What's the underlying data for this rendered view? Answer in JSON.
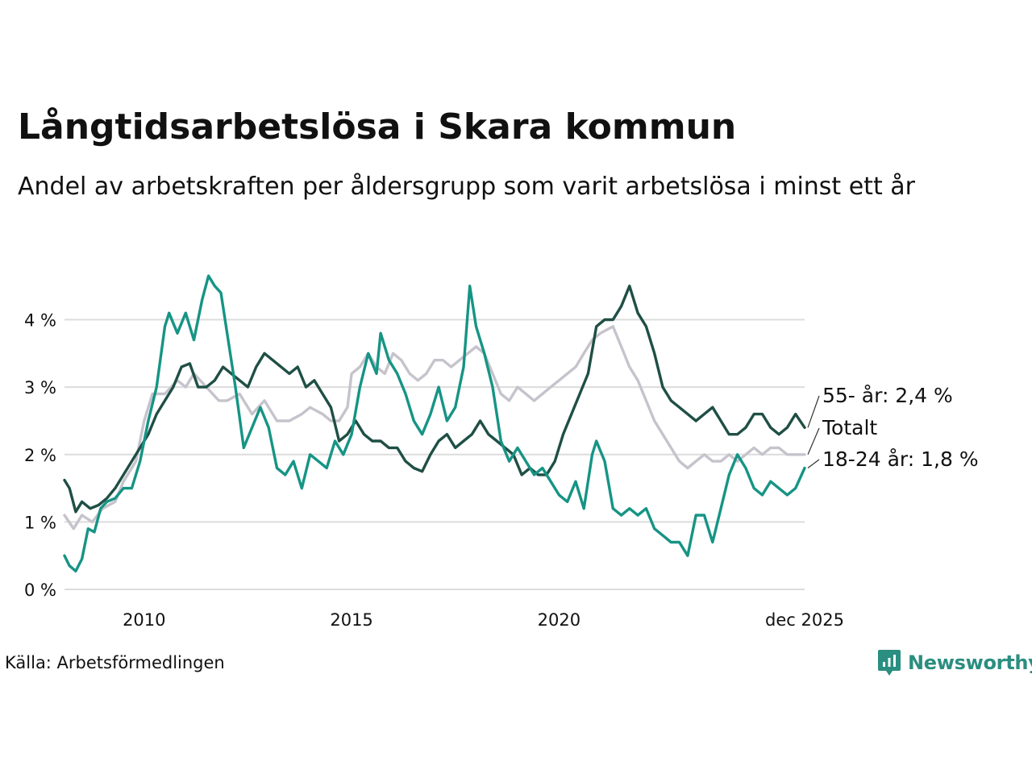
{
  "header": {
    "title": "Långtidsarbetslösa i Skara kommun",
    "subtitle": "Andel av arbetskraften per åldersgrupp som varit arbetslösa i minst ett år"
  },
  "footer": {
    "source": "Källa: Arbetsförmedlingen",
    "brand": "Newsworthy",
    "brand_icon": "newsworthy-logo-icon"
  },
  "colors": {
    "total": "#c6c3cc",
    "age_55": "#1f4f45",
    "age_18_24": "#169485",
    "grid": "#dcdcdc",
    "brand": "#2a8e80"
  },
  "chart_data": {
    "type": "line",
    "title": "Långtidsarbetslösa i Skara kommun",
    "subtitle": "Andel av arbetskraften per åldersgrupp som varit arbetslösa i minst ett år",
    "xlabel": "",
    "ylabel": "",
    "x_range": [
      2008.08,
      2025.92
    ],
    "ylim": [
      0,
      4.7
    ],
    "y_ticks": [
      0,
      1,
      2,
      3,
      4
    ],
    "y_tick_labels": [
      "0 %",
      "1 %",
      "2 %",
      "3 %",
      "4 %"
    ],
    "x_ticks": [
      2010,
      2015,
      2020,
      2025.92
    ],
    "x_tick_labels": [
      "2010",
      "2015",
      "2020",
      "dec 2025"
    ],
    "grid": true,
    "series": [
      {
        "name": "Totalt",
        "key": "total",
        "end_label": "Totalt",
        "points": [
          [
            2008.08,
            1.1
          ],
          [
            2008.3,
            0.9
          ],
          [
            2008.5,
            1.1
          ],
          [
            2008.75,
            1.0
          ],
          [
            2009.0,
            1.2
          ],
          [
            2009.3,
            1.3
          ],
          [
            2009.5,
            1.6
          ],
          [
            2009.8,
            1.9
          ],
          [
            2010.0,
            2.5
          ],
          [
            2010.2,
            2.9
          ],
          [
            2010.5,
            2.9
          ],
          [
            2010.8,
            3.1
          ],
          [
            2011.0,
            3.0
          ],
          [
            2011.2,
            3.2
          ],
          [
            2011.5,
            3.0
          ],
          [
            2011.8,
            2.8
          ],
          [
            2012.0,
            2.8
          ],
          [
            2012.3,
            2.9
          ],
          [
            2012.6,
            2.6
          ],
          [
            2012.9,
            2.8
          ],
          [
            2013.2,
            2.5
          ],
          [
            2013.5,
            2.5
          ],
          [
            2013.8,
            2.6
          ],
          [
            2014.0,
            2.7
          ],
          [
            2014.3,
            2.6
          ],
          [
            2014.5,
            2.5
          ],
          [
            2014.7,
            2.5
          ],
          [
            2014.9,
            2.7
          ],
          [
            2015.0,
            3.2
          ],
          [
            2015.2,
            3.3
          ],
          [
            2015.4,
            3.5
          ],
          [
            2015.6,
            3.3
          ],
          [
            2015.8,
            3.2
          ],
          [
            2016.0,
            3.5
          ],
          [
            2016.2,
            3.4
          ],
          [
            2016.4,
            3.2
          ],
          [
            2016.6,
            3.1
          ],
          [
            2016.8,
            3.2
          ],
          [
            2017.0,
            3.4
          ],
          [
            2017.2,
            3.4
          ],
          [
            2017.4,
            3.3
          ],
          [
            2017.6,
            3.4
          ],
          [
            2017.8,
            3.5
          ],
          [
            2018.0,
            3.6
          ],
          [
            2018.2,
            3.5
          ],
          [
            2018.4,
            3.2
          ],
          [
            2018.6,
            2.9
          ],
          [
            2018.8,
            2.8
          ],
          [
            2019.0,
            3.0
          ],
          [
            2019.2,
            2.9
          ],
          [
            2019.4,
            2.8
          ],
          [
            2019.6,
            2.9
          ],
          [
            2019.8,
            3.0
          ],
          [
            2020.0,
            3.1
          ],
          [
            2020.2,
            3.2
          ],
          [
            2020.4,
            3.3
          ],
          [
            2020.6,
            3.5
          ],
          [
            2020.8,
            3.7
          ],
          [
            2021.0,
            3.8
          ],
          [
            2021.3,
            3.9
          ],
          [
            2021.5,
            3.6
          ],
          [
            2021.7,
            3.3
          ],
          [
            2021.9,
            3.1
          ],
          [
            2022.1,
            2.8
          ],
          [
            2022.3,
            2.5
          ],
          [
            2022.5,
            2.3
          ],
          [
            2022.7,
            2.1
          ],
          [
            2022.9,
            1.9
          ],
          [
            2023.1,
            1.8
          ],
          [
            2023.3,
            1.9
          ],
          [
            2023.5,
            2.0
          ],
          [
            2023.7,
            1.9
          ],
          [
            2023.9,
            1.9
          ],
          [
            2024.1,
            2.0
          ],
          [
            2024.3,
            1.9
          ],
          [
            2024.5,
            2.0
          ],
          [
            2024.7,
            2.1
          ],
          [
            2024.9,
            2.0
          ],
          [
            2025.1,
            2.1
          ],
          [
            2025.3,
            2.1
          ],
          [
            2025.5,
            2.0
          ],
          [
            2025.7,
            2.0
          ],
          [
            2025.92,
            2.0
          ]
        ]
      },
      {
        "name": "55- år",
        "key": "age_55",
        "end_label": "55- år: 2,4 %",
        "last_value": 2.4,
        "points": [
          [
            2008.08,
            1.62
          ],
          [
            2008.2,
            1.5
          ],
          [
            2008.35,
            1.15
          ],
          [
            2008.5,
            1.3
          ],
          [
            2008.7,
            1.2
          ],
          [
            2008.9,
            1.25
          ],
          [
            2009.1,
            1.35
          ],
          [
            2009.3,
            1.5
          ],
          [
            2009.5,
            1.7
          ],
          [
            2009.7,
            1.9
          ],
          [
            2009.9,
            2.1
          ],
          [
            2010.1,
            2.3
          ],
          [
            2010.3,
            2.6
          ],
          [
            2010.5,
            2.8
          ],
          [
            2010.7,
            3.0
          ],
          [
            2010.9,
            3.3
          ],
          [
            2011.1,
            3.35
          ],
          [
            2011.3,
            3.0
          ],
          [
            2011.5,
            3.0
          ],
          [
            2011.7,
            3.1
          ],
          [
            2011.9,
            3.3
          ],
          [
            2012.1,
            3.2
          ],
          [
            2012.3,
            3.1
          ],
          [
            2012.5,
            3.0
          ],
          [
            2012.7,
            3.3
          ],
          [
            2012.9,
            3.5
          ],
          [
            2013.1,
            3.4
          ],
          [
            2013.3,
            3.3
          ],
          [
            2013.5,
            3.2
          ],
          [
            2013.7,
            3.3
          ],
          [
            2013.9,
            3.0
          ],
          [
            2014.1,
            3.1
          ],
          [
            2014.3,
            2.9
          ],
          [
            2014.5,
            2.7
          ],
          [
            2014.7,
            2.2
          ],
          [
            2014.9,
            2.3
          ],
          [
            2015.1,
            2.5
          ],
          [
            2015.3,
            2.3
          ],
          [
            2015.5,
            2.2
          ],
          [
            2015.7,
            2.2
          ],
          [
            2015.9,
            2.1
          ],
          [
            2016.1,
            2.1
          ],
          [
            2016.3,
            1.9
          ],
          [
            2016.5,
            1.8
          ],
          [
            2016.7,
            1.75
          ],
          [
            2016.9,
            2.0
          ],
          [
            2017.1,
            2.2
          ],
          [
            2017.3,
            2.3
          ],
          [
            2017.5,
            2.1
          ],
          [
            2017.7,
            2.2
          ],
          [
            2017.9,
            2.3
          ],
          [
            2018.1,
            2.5
          ],
          [
            2018.3,
            2.3
          ],
          [
            2018.5,
            2.2
          ],
          [
            2018.7,
            2.1
          ],
          [
            2018.9,
            2.0
          ],
          [
            2019.1,
            1.7
          ],
          [
            2019.3,
            1.8
          ],
          [
            2019.5,
            1.7
          ],
          [
            2019.7,
            1.7
          ],
          [
            2019.9,
            1.9
          ],
          [
            2020.1,
            2.3
          ],
          [
            2020.3,
            2.6
          ],
          [
            2020.5,
            2.9
          ],
          [
            2020.7,
            3.2
          ],
          [
            2020.9,
            3.9
          ],
          [
            2021.1,
            4.0
          ],
          [
            2021.3,
            4.0
          ],
          [
            2021.5,
            4.2
          ],
          [
            2021.7,
            4.5
          ],
          [
            2021.9,
            4.1
          ],
          [
            2022.1,
            3.9
          ],
          [
            2022.3,
            3.5
          ],
          [
            2022.5,
            3.0
          ],
          [
            2022.7,
            2.8
          ],
          [
            2022.9,
            2.7
          ],
          [
            2023.1,
            2.6
          ],
          [
            2023.3,
            2.5
          ],
          [
            2023.5,
            2.6
          ],
          [
            2023.7,
            2.7
          ],
          [
            2023.9,
            2.5
          ],
          [
            2024.1,
            2.3
          ],
          [
            2024.3,
            2.3
          ],
          [
            2024.5,
            2.4
          ],
          [
            2024.7,
            2.6
          ],
          [
            2024.9,
            2.6
          ],
          [
            2025.1,
            2.4
          ],
          [
            2025.3,
            2.3
          ],
          [
            2025.5,
            2.4
          ],
          [
            2025.7,
            2.6
          ],
          [
            2025.92,
            2.4
          ]
        ]
      },
      {
        "name": "18-24 år",
        "key": "age_18_24",
        "end_label": "18-24 år: 1,8 %",
        "last_value": 1.8,
        "points": [
          [
            2008.08,
            0.5
          ],
          [
            2008.2,
            0.35
          ],
          [
            2008.35,
            0.27
          ],
          [
            2008.5,
            0.45
          ],
          [
            2008.65,
            0.9
          ],
          [
            2008.8,
            0.85
          ],
          [
            2008.95,
            1.2
          ],
          [
            2009.1,
            1.3
          ],
          [
            2009.3,
            1.35
          ],
          [
            2009.5,
            1.5
          ],
          [
            2009.7,
            1.5
          ],
          [
            2009.9,
            1.9
          ],
          [
            2010.1,
            2.5
          ],
          [
            2010.3,
            3.0
          ],
          [
            2010.5,
            3.9
          ],
          [
            2010.6,
            4.1
          ],
          [
            2010.8,
            3.8
          ],
          [
            2011.0,
            4.1
          ],
          [
            2011.2,
            3.7
          ],
          [
            2011.4,
            4.3
          ],
          [
            2011.55,
            4.65
          ],
          [
            2011.7,
            4.5
          ],
          [
            2011.85,
            4.4
          ],
          [
            2012.0,
            3.8
          ],
          [
            2012.2,
            3.0
          ],
          [
            2012.4,
            2.1
          ],
          [
            2012.6,
            2.4
          ],
          [
            2012.8,
            2.7
          ],
          [
            2013.0,
            2.4
          ],
          [
            2013.2,
            1.8
          ],
          [
            2013.4,
            1.7
          ],
          [
            2013.6,
            1.9
          ],
          [
            2013.8,
            1.5
          ],
          [
            2014.0,
            2.0
          ],
          [
            2014.2,
            1.9
          ],
          [
            2014.4,
            1.8
          ],
          [
            2014.6,
            2.2
          ],
          [
            2014.8,
            2.0
          ],
          [
            2015.0,
            2.3
          ],
          [
            2015.2,
            3.0
          ],
          [
            2015.4,
            3.5
          ],
          [
            2015.6,
            3.2
          ],
          [
            2015.7,
            3.8
          ],
          [
            2015.9,
            3.4
          ],
          [
            2016.1,
            3.2
          ],
          [
            2016.3,
            2.9
          ],
          [
            2016.5,
            2.5
          ],
          [
            2016.7,
            2.3
          ],
          [
            2016.9,
            2.6
          ],
          [
            2017.1,
            3.0
          ],
          [
            2017.3,
            2.5
          ],
          [
            2017.5,
            2.7
          ],
          [
            2017.7,
            3.3
          ],
          [
            2017.85,
            4.5
          ],
          [
            2018.0,
            3.9
          ],
          [
            2018.2,
            3.5
          ],
          [
            2018.4,
            3.0
          ],
          [
            2018.6,
            2.2
          ],
          [
            2018.8,
            1.9
          ],
          [
            2019.0,
            2.1
          ],
          [
            2019.2,
            1.9
          ],
          [
            2019.4,
            1.7
          ],
          [
            2019.6,
            1.8
          ],
          [
            2019.8,
            1.6
          ],
          [
            2020.0,
            1.4
          ],
          [
            2020.2,
            1.3
          ],
          [
            2020.4,
            1.6
          ],
          [
            2020.6,
            1.2
          ],
          [
            2020.8,
            2.0
          ],
          [
            2020.9,
            2.2
          ],
          [
            2021.1,
            1.9
          ],
          [
            2021.3,
            1.2
          ],
          [
            2021.5,
            1.1
          ],
          [
            2021.7,
            1.2
          ],
          [
            2021.9,
            1.1
          ],
          [
            2022.1,
            1.2
          ],
          [
            2022.3,
            0.9
          ],
          [
            2022.5,
            0.8
          ],
          [
            2022.7,
            0.7
          ],
          [
            2022.9,
            0.7
          ],
          [
            2023.1,
            0.5
          ],
          [
            2023.3,
            1.1
          ],
          [
            2023.5,
            1.1
          ],
          [
            2023.7,
            0.7
          ],
          [
            2023.9,
            1.2
          ],
          [
            2024.1,
            1.7
          ],
          [
            2024.3,
            2.0
          ],
          [
            2024.5,
            1.8
          ],
          [
            2024.7,
            1.5
          ],
          [
            2024.9,
            1.4
          ],
          [
            2025.1,
            1.6
          ],
          [
            2025.3,
            1.5
          ],
          [
            2025.5,
            1.4
          ],
          [
            2025.7,
            1.5
          ],
          [
            2025.92,
            1.8
          ]
        ]
      }
    ]
  }
}
